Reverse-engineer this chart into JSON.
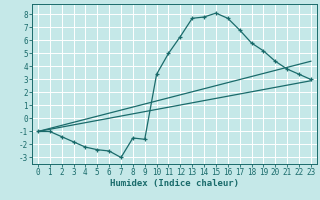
{
  "title": "",
  "xlabel": "Humidex (Indice chaleur)",
  "bg_color": "#c5e8e8",
  "grid_color": "#ffffff",
  "line_color": "#1a6b6b",
  "xlim": [
    -0.5,
    23.5
  ],
  "ylim": [
    -3.5,
    8.8
  ],
  "xticks": [
    0,
    1,
    2,
    3,
    4,
    5,
    6,
    7,
    8,
    9,
    10,
    11,
    12,
    13,
    14,
    15,
    16,
    17,
    18,
    19,
    20,
    21,
    22,
    23
  ],
  "yticks": [
    -3,
    -2,
    -1,
    0,
    1,
    2,
    3,
    4,
    5,
    6,
    7,
    8
  ],
  "line1_x": [
    0,
    1,
    2,
    3,
    4,
    5,
    6,
    7,
    8,
    9,
    10,
    11,
    12,
    13,
    14,
    15,
    16,
    17,
    18,
    19,
    20,
    21,
    22,
    23
  ],
  "line1_y": [
    -1,
    -1,
    -1.4,
    -1.8,
    -2.2,
    -2.4,
    -2.5,
    -3,
    -1.5,
    -1.6,
    3.4,
    5.0,
    6.3,
    7.7,
    7.8,
    8.1,
    7.7,
    6.8,
    5.8,
    5.2,
    4.4,
    3.8,
    3.4,
    3.0
  ],
  "line2_x": [
    0,
    23
  ],
  "line2_y": [
    -1,
    2.9
  ],
  "line3_x": [
    0,
    23
  ],
  "line3_y": [
    -1,
    4.4
  ],
  "tick_fontsize": 5.5,
  "xlabel_fontsize": 6.5
}
